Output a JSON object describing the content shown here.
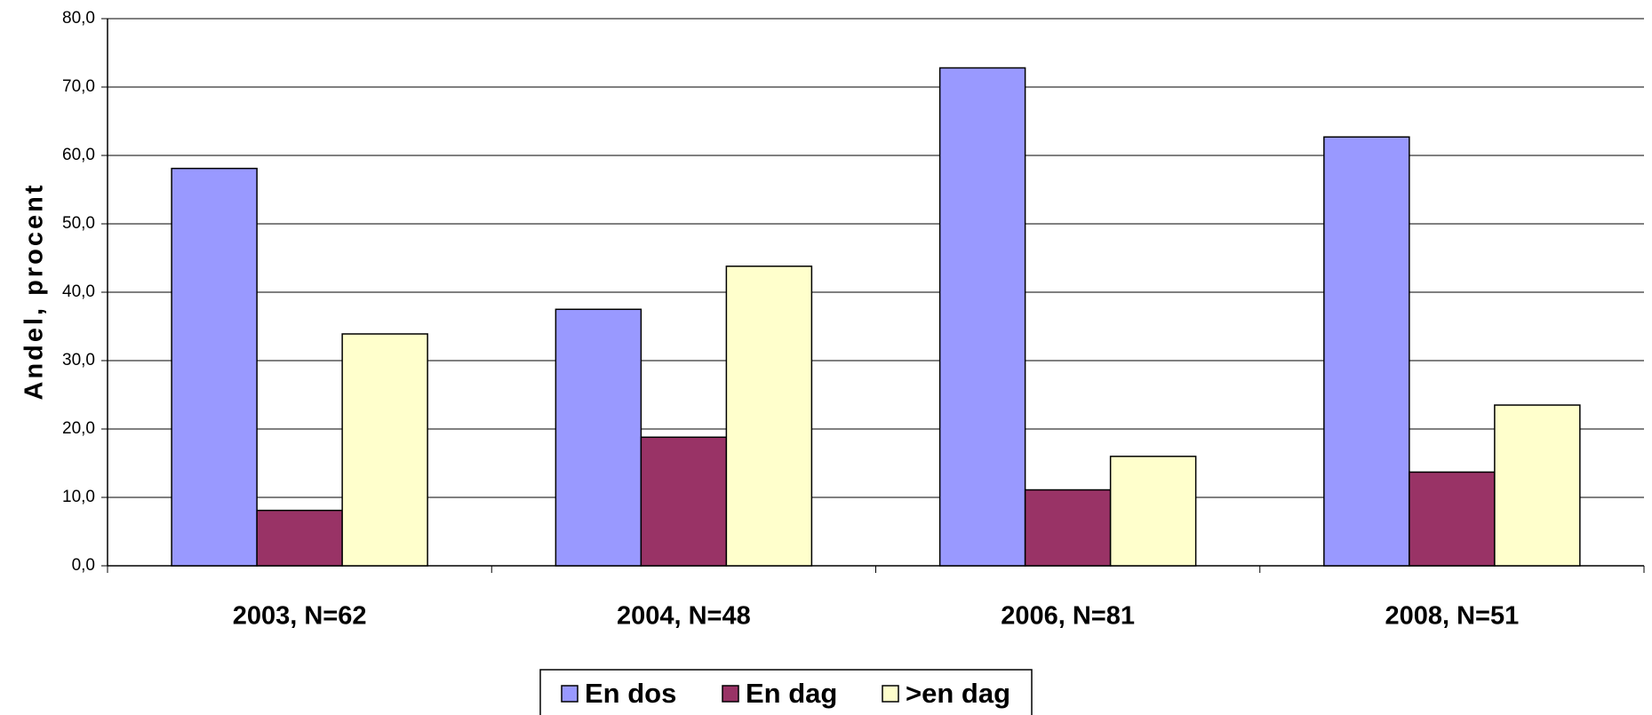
{
  "chart_data": {
    "type": "bar",
    "y_label": "Andel, procent",
    "categories": [
      "2003, N=62",
      "2004, N=48",
      "2006, N=81",
      "2008, N=51"
    ],
    "series": [
      {
        "name": "En dos",
        "color": "#9999ff",
        "values": [
          58.1,
          37.5,
          72.8,
          62.7
        ]
      },
      {
        "name": "En dag",
        "color": "#993366",
        "values": [
          8.1,
          18.8,
          11.1,
          13.7
        ]
      },
      {
        "name": ">en dag",
        "color": "#ffffcc",
        "values": [
          33.9,
          43.8,
          16.0,
          23.5
        ]
      }
    ],
    "ylim": [
      0,
      80
    ],
    "yticks": [
      {
        "value": 0,
        "label": "0,0"
      },
      {
        "value": 10,
        "label": "10,0"
      },
      {
        "value": 20,
        "label": "20,0"
      },
      {
        "value": 30,
        "label": "30,0"
      },
      {
        "value": 40,
        "label": "40,0"
      },
      {
        "value": 50,
        "label": "50,0"
      },
      {
        "value": 60,
        "label": "60,0"
      },
      {
        "value": 70,
        "label": "70,0"
      },
      {
        "value": 80,
        "label": "80,0"
      }
    ],
    "grid": true,
    "legend": "bottom"
  }
}
